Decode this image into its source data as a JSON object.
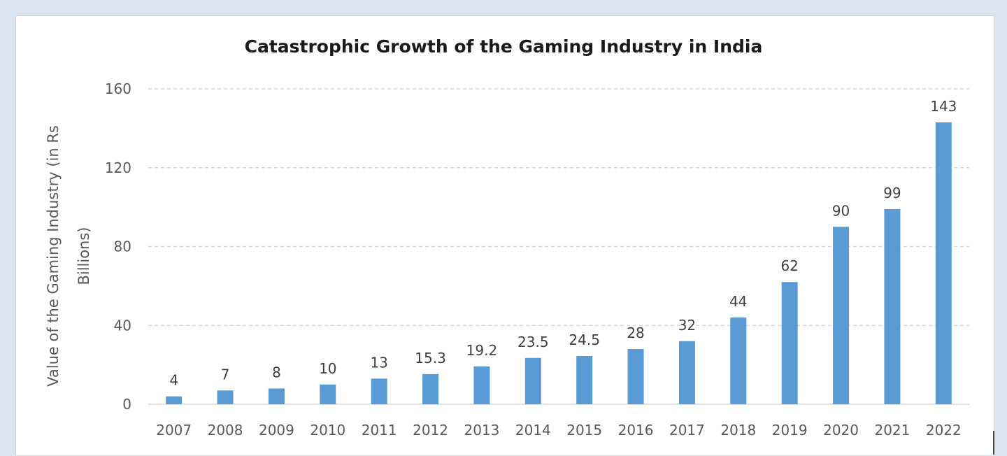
{
  "chart_data": {
    "type": "bar",
    "title": "Catastrophic Growth of the Gaming Industry in India",
    "ylabel": "Value of the Gaming Industry (in Rs Billions)",
    "ylabel_lines": [
      "Value of the Gaming Industry (in Rs",
      "Billions)"
    ],
    "xlabel": "",
    "categories": [
      "2007",
      "2008",
      "2009",
      "2010",
      "2011",
      "2012",
      "2013",
      "2014",
      "2015",
      "2016",
      "2017",
      "2018",
      "2019",
      "2020",
      "2021",
      "2022"
    ],
    "values": [
      4,
      7,
      8,
      10,
      13,
      15.3,
      19.2,
      23.5,
      24.5,
      28,
      32,
      44,
      62,
      90,
      99,
      143
    ],
    "data_labels": [
      "4",
      "7",
      "8",
      "10",
      "13",
      "15.3",
      "19.2",
      "23.5",
      "24.5",
      "28",
      "32",
      "44",
      "62",
      "90",
      "99",
      "143"
    ],
    "ylim": [
      0,
      160
    ],
    "yticks": [
      "0",
      "40",
      "80",
      "120",
      "160"
    ],
    "grid": "horizontal dashed",
    "bar_color": "#5b9bd5",
    "grid_color": "#d9d9d9"
  }
}
